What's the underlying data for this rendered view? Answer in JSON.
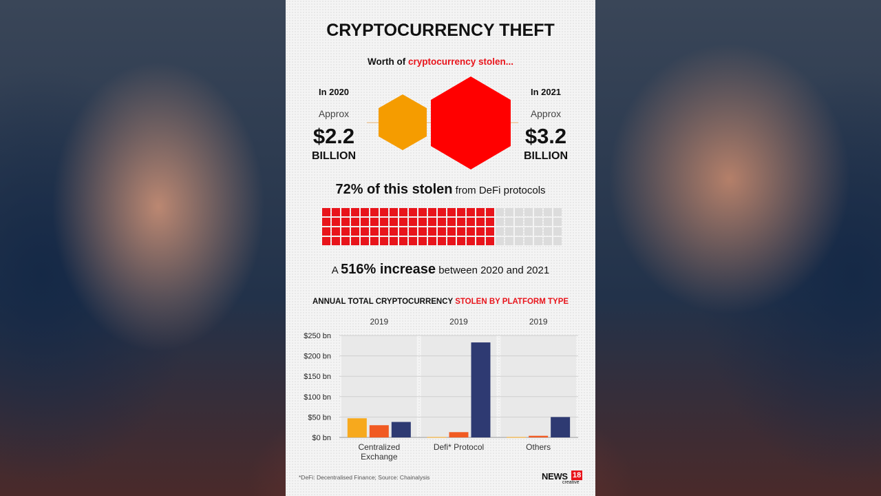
{
  "title": "CRYPTOCURRENCY THEFT",
  "subtitle": {
    "prefix": "Worth of ",
    "highlight": "cryptocurrency stolen..."
  },
  "left_stat": {
    "year": "In 2020",
    "approx": "Approx",
    "amount": "$2.2",
    "unit": "BILLION"
  },
  "right_stat": {
    "year": "In 2021",
    "approx": "Approx",
    "amount": "$3.2",
    "unit": "BILLION"
  },
  "defi_share": {
    "bold": "72% of this stolen",
    "rest": " from DeFi protocols",
    "percent": 72
  },
  "increase": {
    "prefix": "A ",
    "bold": "516% increase",
    "rest": " between 2020 and 2021"
  },
  "colors": {
    "red": "#e8141b",
    "orange_hex": "#f59c00",
    "red_hex": "#ff0000",
    "grey_cell": "#dcdcdc",
    "bar_yellow": "#f7a91d",
    "bar_orange": "#f15a22",
    "bar_navy": "#2e3a72"
  },
  "chart_title": {
    "prefix": "ANNUAL TOTAL CRYPTOCURRENCY ",
    "highlight": "STOLEN BY PLATFORM TYPE"
  },
  "chart_data": {
    "type": "bar",
    "title": "ANNUAL TOTAL CRYPTOCURRENCY STOLEN BY PLATFORM TYPE",
    "categories": [
      "Centralized Exchange",
      "Defi* Protocol",
      "Others"
    ],
    "category_labels": [
      [
        "Centralized",
        "Exchange"
      ],
      [
        "Defi* Protocol"
      ],
      [
        "Others"
      ]
    ],
    "group_headers": [
      "2019",
      "2019",
      "2019"
    ],
    "series": [
      {
        "color": "#f7a91d",
        "values": [
          47,
          1,
          1
        ]
      },
      {
        "color": "#f15a22",
        "values": [
          30,
          13,
          4
        ]
      },
      {
        "color": "#2e3a72",
        "values": [
          38,
          233,
          50
        ]
      }
    ],
    "ylim": [
      0,
      250
    ],
    "yticks": [
      0,
      50,
      100,
      150,
      200,
      250
    ],
    "ytick_labels": [
      "$0 bn",
      "$50 bn",
      "$100 bn",
      "$150 bn",
      "$200 bn",
      "$250 bn"
    ],
    "grid": true
  },
  "footnote": "*DeFi: Decentralised Finance;   Source: Chainalysis",
  "logo": {
    "name": "NEWS",
    "number": "18",
    "tag": "creative"
  }
}
